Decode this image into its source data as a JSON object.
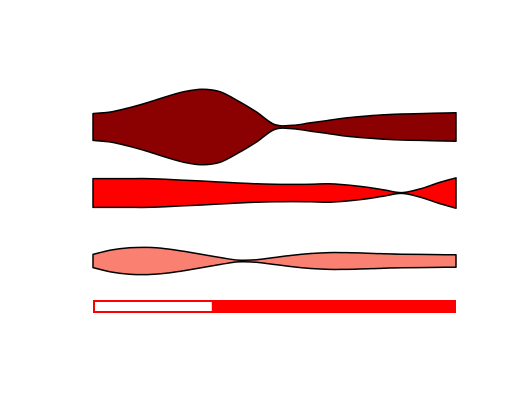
{
  "chart_data": {
    "type": "area",
    "title": "",
    "xlabel": "",
    "ylabel": "",
    "grid": false,
    "legend": "none",
    "x": [
      0,
      0.05,
      0.1,
      0.15,
      0.2,
      0.25,
      0.3,
      0.35,
      0.4,
      0.45,
      0.5,
      0.55,
      0.6,
      0.65,
      0.7,
      0.75,
      0.8,
      0.85,
      0.9,
      0.95,
      1
    ],
    "series": [
      {
        "color": "#8b0000",
        "thickness": [
          0.32,
          0.36,
          0.46,
          0.58,
          0.72,
          0.84,
          0.9,
          0.84,
          0.62,
          0.36,
          0.06,
          0.04,
          0.1,
          0.16,
          0.22,
          0.26,
          0.29,
          0.31,
          0.32,
          0.33,
          0.34
        ]
      },
      {
        "color": "#ff0000",
        "thickness": [
          0.72,
          0.72,
          0.72,
          0.72,
          0.69,
          0.64,
          0.6,
          0.55,
          0.5,
          0.46,
          0.44,
          0.43,
          0.44,
          0.46,
          0.4,
          0.3,
          0.16,
          0.02,
          0.2,
          0.5,
          0.76
        ]
      },
      {
        "color": "#fa8072",
        "thickness": [
          0.3,
          0.5,
          0.6,
          0.62,
          0.56,
          0.44,
          0.3,
          0.16,
          0.04,
          0.06,
          0.16,
          0.26,
          0.34,
          0.38,
          0.38,
          0.36,
          0.33,
          0.31,
          0.3,
          0.29,
          0.28
        ]
      }
    ],
    "progress": {
      "value": 0.33,
      "color": "#ff0000"
    }
  }
}
